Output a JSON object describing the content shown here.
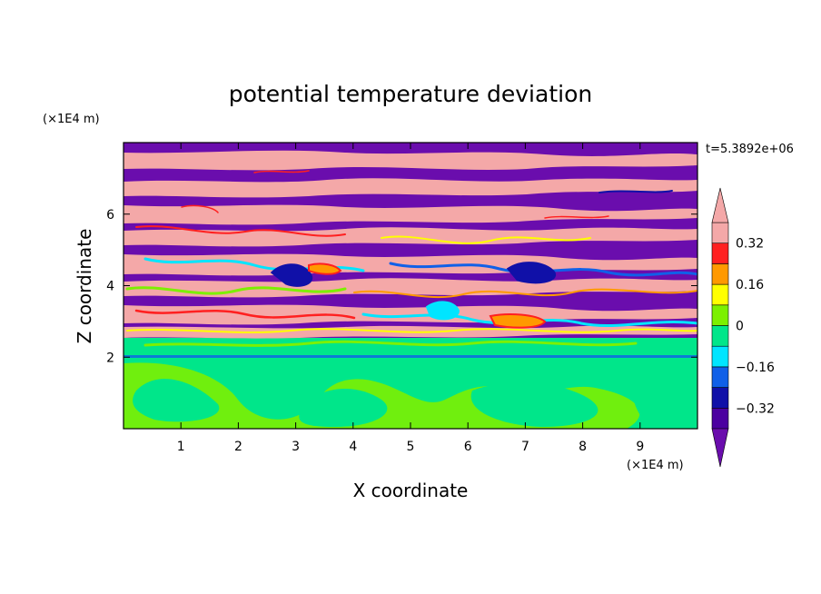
{
  "chart_data": {
    "type": "heatmap",
    "title": "potential temperature deviation",
    "xlabel": "X coordinate",
    "ylabel": "Z coordinate",
    "x_unit": "(×1E4 m)",
    "y_unit": "(×1E4 m)",
    "time_label": "t=5.3892e+06",
    "xlim": [
      0,
      10
    ],
    "ylim": [
      0,
      8
    ],
    "x_ticks": [
      1,
      2,
      3,
      4,
      5,
      6,
      7,
      8,
      9
    ],
    "y_ticks": [
      2,
      4,
      6
    ],
    "colorbar": {
      "levels": [
        -0.4,
        -0.32,
        -0.24,
        -0.16,
        -0.08,
        0,
        0.08,
        0.16,
        0.24,
        0.32,
        0.4
      ],
      "tick_labels": [
        "−0.32",
        "−0.16",
        "0",
        "0.16",
        "0.32"
      ],
      "tick_values": [
        -0.32,
        -0.16,
        0,
        0.16,
        0.32
      ],
      "colors": [
        "#6a0dad",
        "#4b00a0",
        "#1010a8",
        "#1060e8",
        "#00e5ff",
        "#00e68a",
        "#7cf000",
        "#ffff00",
        "#ff9900",
        "#ff2020",
        "#f4a8a8"
      ],
      "under_color": "#6a0dad",
      "over_color": "#f4a8a8",
      "extend": "both"
    }
  }
}
